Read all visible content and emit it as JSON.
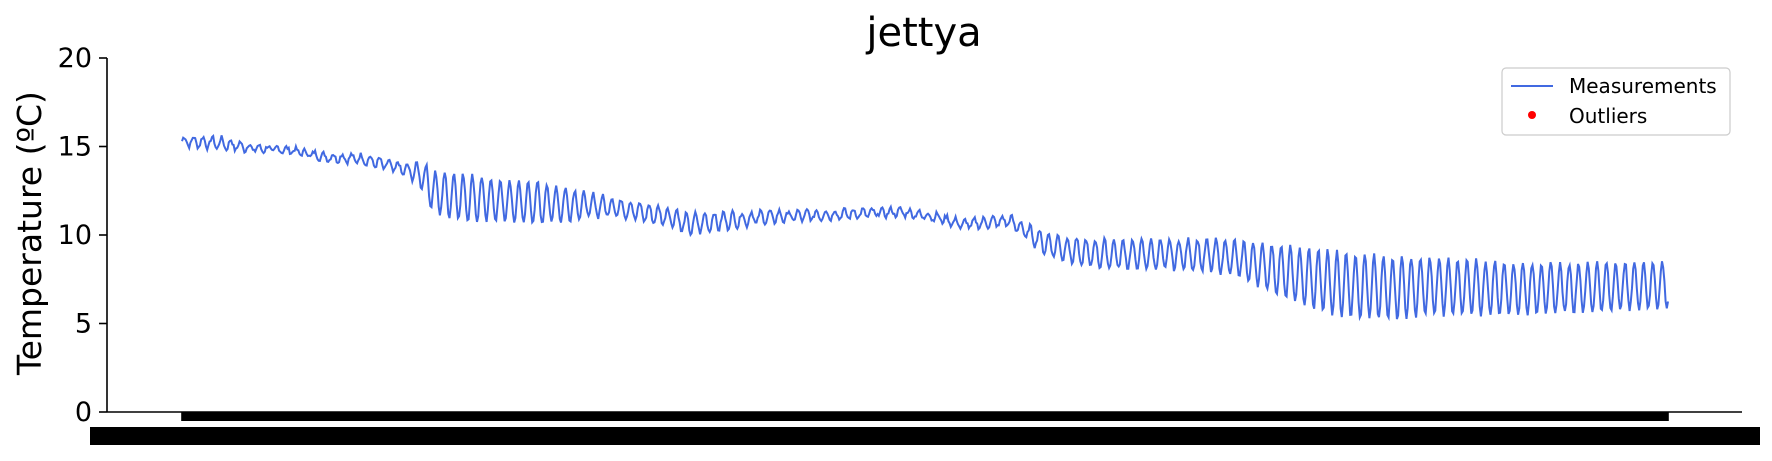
{
  "chart_data": {
    "type": "line",
    "title": "jettya",
    "xlabel": "",
    "ylabel": "Temperature (ºC)",
    "ylim": [
      0,
      20
    ],
    "yticks": [
      0,
      5,
      10,
      15,
      20
    ],
    "grid": false,
    "legend_position": "top-right",
    "series": [
      {
        "name": "Measurements",
        "color": "#4169e1",
        "style": "line",
        "trend": [
          [
            0,
            15.3
          ],
          [
            30,
            15.2
          ],
          [
            60,
            14.9
          ],
          [
            90,
            14.8
          ],
          [
            120,
            14.4
          ],
          [
            150,
            14.3
          ],
          [
            180,
            13.8
          ],
          [
            200,
            13.4
          ],
          [
            210,
            12.4
          ],
          [
            240,
            12.1
          ],
          [
            270,
            11.9
          ],
          [
            300,
            11.8
          ],
          [
            330,
            11.7
          ],
          [
            360,
            11.6
          ],
          [
            390,
            11.2
          ],
          [
            410,
            11.0
          ],
          [
            420,
            10.6
          ],
          [
            450,
            10.8
          ],
          [
            470,
            10.9
          ],
          [
            480,
            11.0
          ],
          [
            520,
            11.1
          ],
          [
            560,
            11.2
          ],
          [
            600,
            11.3
          ],
          [
            630,
            11.0
          ],
          [
            650,
            10.6
          ],
          [
            670,
            10.7
          ],
          [
            690,
            10.8
          ],
          [
            720,
            9.5
          ],
          [
            750,
            9.0
          ],
          [
            780,
            8.9
          ],
          [
            810,
            8.9
          ],
          [
            840,
            8.9
          ],
          [
            870,
            8.8
          ],
          [
            900,
            8.3
          ],
          [
            930,
            7.7
          ],
          [
            960,
            7.3
          ],
          [
            1000,
            7.0
          ],
          [
            1040,
            7.1
          ],
          [
            1100,
            7.0
          ],
          [
            1150,
            7.0
          ],
          [
            1200,
            7.1
          ],
          [
            1239,
            7.2
          ]
        ],
        "amplitude": [
          [
            0,
            0.25
          ],
          [
            30,
            0.35
          ],
          [
            60,
            0.2
          ],
          [
            90,
            0.15
          ],
          [
            150,
            0.25
          ],
          [
            190,
            0.35
          ],
          [
            210,
            1.2
          ],
          [
            240,
            1.3
          ],
          [
            270,
            1.2
          ],
          [
            300,
            1.2
          ],
          [
            330,
            0.8
          ],
          [
            360,
            0.5
          ],
          [
            400,
            0.5
          ],
          [
            420,
            0.6
          ],
          [
            450,
            0.5
          ],
          [
            480,
            0.35
          ],
          [
            600,
            0.2
          ],
          [
            660,
            0.25
          ],
          [
            690,
            0.3
          ],
          [
            720,
            0.6
          ],
          [
            750,
            0.8
          ],
          [
            800,
            0.8
          ],
          [
            860,
            0.9
          ],
          [
            900,
            1.2
          ],
          [
            930,
            1.6
          ],
          [
            960,
            1.8
          ],
          [
            1000,
            1.8
          ],
          [
            1050,
            1.6
          ],
          [
            1100,
            1.5
          ],
          [
            1150,
            1.4
          ],
          [
            1200,
            1.4
          ],
          [
            1239,
            1.3
          ]
        ],
        "cycles": 160,
        "x_count": 1240
      },
      {
        "name": "Outliers",
        "color": "#ff0000",
        "style": "marker",
        "values": []
      }
    ],
    "x_tick_count": 1240
  }
}
